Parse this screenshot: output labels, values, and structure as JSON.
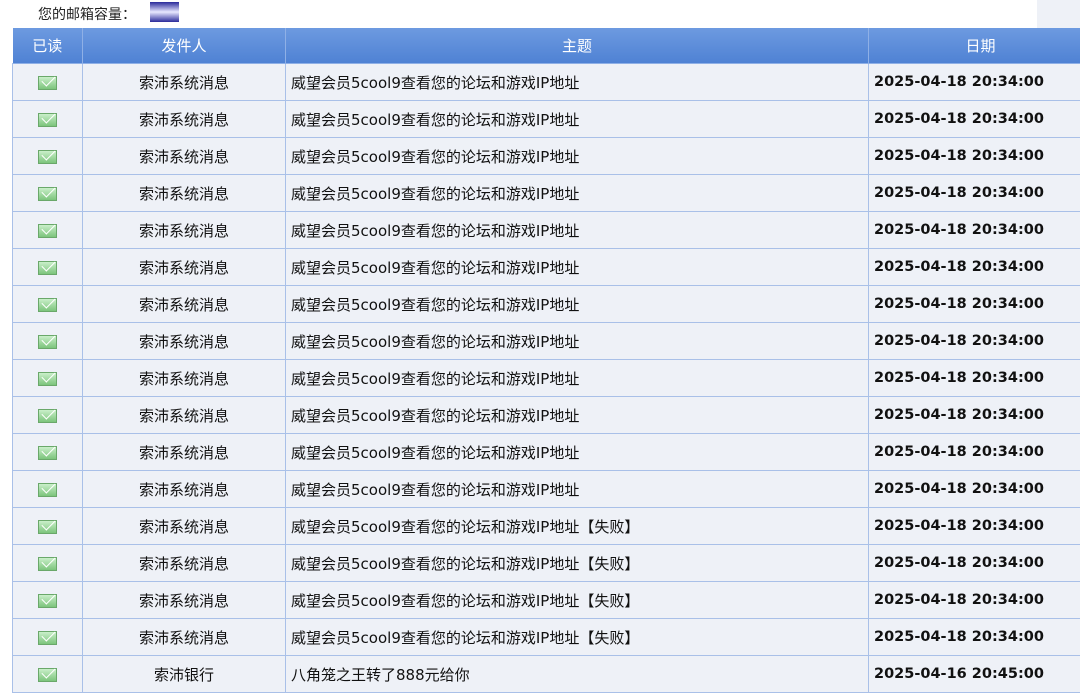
{
  "quota": {
    "label": "您的邮箱容量："
  },
  "columns": [
    "已读",
    "发件人",
    "主题",
    "日期"
  ],
  "rows": [
    {
      "sender": "索沛系统消息",
      "subject": "威望会员5cool9查看您的论坛和游戏IP地址",
      "date": "2025-04-18 20:34:00"
    },
    {
      "sender": "索沛系统消息",
      "subject": "威望会员5cool9查看您的论坛和游戏IP地址",
      "date": "2025-04-18 20:34:00"
    },
    {
      "sender": "索沛系统消息",
      "subject": "威望会员5cool9查看您的论坛和游戏IP地址",
      "date": "2025-04-18 20:34:00"
    },
    {
      "sender": "索沛系统消息",
      "subject": "威望会员5cool9查看您的论坛和游戏IP地址",
      "date": "2025-04-18 20:34:00"
    },
    {
      "sender": "索沛系统消息",
      "subject": "威望会员5cool9查看您的论坛和游戏IP地址",
      "date": "2025-04-18 20:34:00"
    },
    {
      "sender": "索沛系统消息",
      "subject": "威望会员5cool9查看您的论坛和游戏IP地址",
      "date": "2025-04-18 20:34:00"
    },
    {
      "sender": "索沛系统消息",
      "subject": "威望会员5cool9查看您的论坛和游戏IP地址",
      "date": "2025-04-18 20:34:00"
    },
    {
      "sender": "索沛系统消息",
      "subject": "威望会员5cool9查看您的论坛和游戏IP地址",
      "date": "2025-04-18 20:34:00"
    },
    {
      "sender": "索沛系统消息",
      "subject": "威望会员5cool9查看您的论坛和游戏IP地址",
      "date": "2025-04-18 20:34:00"
    },
    {
      "sender": "索沛系统消息",
      "subject": "威望会员5cool9查看您的论坛和游戏IP地址",
      "date": "2025-04-18 20:34:00"
    },
    {
      "sender": "索沛系统消息",
      "subject": "威望会员5cool9查看您的论坛和游戏IP地址",
      "date": "2025-04-18 20:34:00"
    },
    {
      "sender": "索沛系统消息",
      "subject": "威望会员5cool9查看您的论坛和游戏IP地址",
      "date": "2025-04-18 20:34:00"
    },
    {
      "sender": "索沛系统消息",
      "subject": "威望会员5cool9查看您的论坛和游戏IP地址【失败】",
      "date": "2025-04-18 20:34:00"
    },
    {
      "sender": "索沛系统消息",
      "subject": "威望会员5cool9查看您的论坛和游戏IP地址【失败】",
      "date": "2025-04-18 20:34:00"
    },
    {
      "sender": "索沛系统消息",
      "subject": "威望会员5cool9查看您的论坛和游戏IP地址【失败】",
      "date": "2025-04-18 20:34:00"
    },
    {
      "sender": "索沛系统消息",
      "subject": "威望会员5cool9查看您的论坛和游戏IP地址【失败】",
      "date": "2025-04-18 20:34:00"
    },
    {
      "sender": "索沛银行",
      "subject": "八角笼之王转了888元给你",
      "date": "2025-04-16 20:45:00"
    }
  ],
  "read_icon": "envelope-read-icon",
  "colors": {
    "header": "#5b8cd8",
    "row": "#eef1f7",
    "border": "#8fb0e6"
  }
}
